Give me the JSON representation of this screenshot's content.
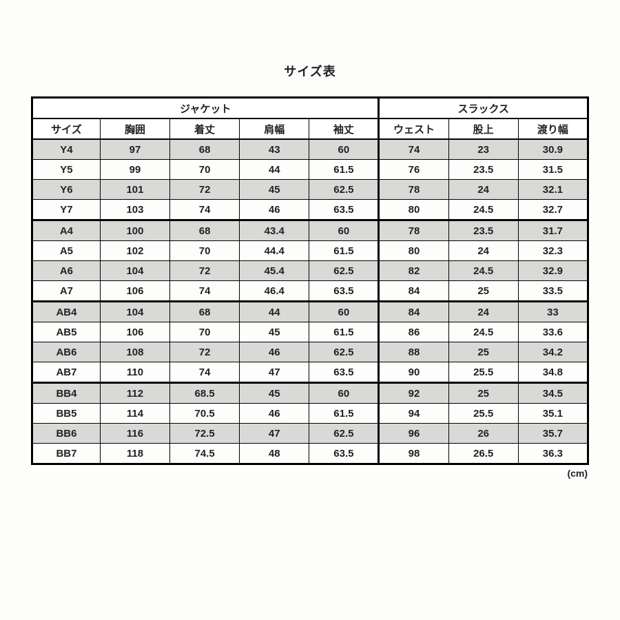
{
  "title": "サイズ表",
  "unit": "(cm)",
  "sections": {
    "jacket": "ジャケット",
    "slacks": "スラックス"
  },
  "columns": {
    "size": "サイズ",
    "chest": "胸囲",
    "length": "着丈",
    "shoulder": "肩幅",
    "sleeve": "袖丈",
    "waist": "ウェスト",
    "rise": "股上",
    "thigh": "渡り幅"
  },
  "groups": [
    {
      "rows": [
        {
          "shade": true,
          "size": "Y4",
          "chest": "97",
          "length": "68",
          "shoulder": "43",
          "sleeve": "60",
          "waist": "74",
          "rise": "23",
          "thigh": "30.9"
        },
        {
          "shade": false,
          "size": "Y5",
          "chest": "99",
          "length": "70",
          "shoulder": "44",
          "sleeve": "61.5",
          "waist": "76",
          "rise": "23.5",
          "thigh": "31.5"
        },
        {
          "shade": true,
          "size": "Y6",
          "chest": "101",
          "length": "72",
          "shoulder": "45",
          "sleeve": "62.5",
          "waist": "78",
          "rise": "24",
          "thigh": "32.1"
        },
        {
          "shade": false,
          "size": "Y7",
          "chest": "103",
          "length": "74",
          "shoulder": "46",
          "sleeve": "63.5",
          "waist": "80",
          "rise": "24.5",
          "thigh": "32.7"
        }
      ]
    },
    {
      "rows": [
        {
          "shade": true,
          "size": "A4",
          "chest": "100",
          "length": "68",
          "shoulder": "43.4",
          "sleeve": "60",
          "waist": "78",
          "rise": "23.5",
          "thigh": "31.7"
        },
        {
          "shade": false,
          "size": "A5",
          "chest": "102",
          "length": "70",
          "shoulder": "44.4",
          "sleeve": "61.5",
          "waist": "80",
          "rise": "24",
          "thigh": "32.3"
        },
        {
          "shade": true,
          "size": "A6",
          "chest": "104",
          "length": "72",
          "shoulder": "45.4",
          "sleeve": "62.5",
          "waist": "82",
          "rise": "24.5",
          "thigh": "32.9"
        },
        {
          "shade": false,
          "size": "A7",
          "chest": "106",
          "length": "74",
          "shoulder": "46.4",
          "sleeve": "63.5",
          "waist": "84",
          "rise": "25",
          "thigh": "33.5"
        }
      ]
    },
    {
      "rows": [
        {
          "shade": true,
          "size": "AB4",
          "chest": "104",
          "length": "68",
          "shoulder": "44",
          "sleeve": "60",
          "waist": "84",
          "rise": "24",
          "thigh": "33"
        },
        {
          "shade": false,
          "size": "AB5",
          "chest": "106",
          "length": "70",
          "shoulder": "45",
          "sleeve": "61.5",
          "waist": "86",
          "rise": "24.5",
          "thigh": "33.6"
        },
        {
          "shade": true,
          "size": "AB6",
          "chest": "108",
          "length": "72",
          "shoulder": "46",
          "sleeve": "62.5",
          "waist": "88",
          "rise": "25",
          "thigh": "34.2"
        },
        {
          "shade": false,
          "size": "AB7",
          "chest": "110",
          "length": "74",
          "shoulder": "47",
          "sleeve": "63.5",
          "waist": "90",
          "rise": "25.5",
          "thigh": "34.8"
        }
      ]
    },
    {
      "rows": [
        {
          "shade": true,
          "size": "BB4",
          "chest": "112",
          "length": "68.5",
          "shoulder": "45",
          "sleeve": "60",
          "waist": "92",
          "rise": "25",
          "thigh": "34.5"
        },
        {
          "shade": false,
          "size": "BB5",
          "chest": "114",
          "length": "70.5",
          "shoulder": "46",
          "sleeve": "61.5",
          "waist": "94",
          "rise": "25.5",
          "thigh": "35.1"
        },
        {
          "shade": true,
          "size": "BB6",
          "chest": "116",
          "length": "72.5",
          "shoulder": "47",
          "sleeve": "62.5",
          "waist": "96",
          "rise": "26",
          "thigh": "35.7"
        },
        {
          "shade": false,
          "size": "BB7",
          "chest": "118",
          "length": "74.5",
          "shoulder": "48",
          "sleeve": "63.5",
          "waist": "98",
          "rise": "26.5",
          "thigh": "36.3"
        }
      ]
    }
  ]
}
